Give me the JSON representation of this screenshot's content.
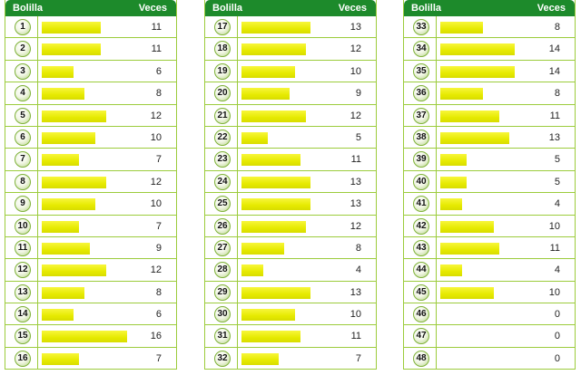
{
  "header": {
    "ball_label": "Bolilla",
    "count_label": "Veces"
  },
  "max_value": 16,
  "columns": [
    {
      "rows": [
        {
          "ball": "1",
          "count": 11
        },
        {
          "ball": "2",
          "count": 11
        },
        {
          "ball": "3",
          "count": 6
        },
        {
          "ball": "4",
          "count": 8
        },
        {
          "ball": "5",
          "count": 12
        },
        {
          "ball": "6",
          "count": 10
        },
        {
          "ball": "7",
          "count": 7
        },
        {
          "ball": "8",
          "count": 12
        },
        {
          "ball": "9",
          "count": 10
        },
        {
          "ball": "10",
          "count": 7
        },
        {
          "ball": "11",
          "count": 9
        },
        {
          "ball": "12",
          "count": 12
        },
        {
          "ball": "13",
          "count": 8
        },
        {
          "ball": "14",
          "count": 6
        },
        {
          "ball": "15",
          "count": 16
        },
        {
          "ball": "16",
          "count": 7
        }
      ]
    },
    {
      "rows": [
        {
          "ball": "17",
          "count": 13
        },
        {
          "ball": "18",
          "count": 12
        },
        {
          "ball": "19",
          "count": 10
        },
        {
          "ball": "20",
          "count": 9
        },
        {
          "ball": "21",
          "count": 12
        },
        {
          "ball": "22",
          "count": 5
        },
        {
          "ball": "23",
          "count": 11
        },
        {
          "ball": "24",
          "count": 13
        },
        {
          "ball": "25",
          "count": 13
        },
        {
          "ball": "26",
          "count": 12
        },
        {
          "ball": "27",
          "count": 8
        },
        {
          "ball": "28",
          "count": 4
        },
        {
          "ball": "29",
          "count": 13
        },
        {
          "ball": "30",
          "count": 10
        },
        {
          "ball": "31",
          "count": 11
        },
        {
          "ball": "32",
          "count": 7
        }
      ]
    },
    {
      "rows": [
        {
          "ball": "33",
          "count": 8
        },
        {
          "ball": "34",
          "count": 14
        },
        {
          "ball": "35",
          "count": 14
        },
        {
          "ball": "36",
          "count": 8
        },
        {
          "ball": "37",
          "count": 11
        },
        {
          "ball": "38",
          "count": 13
        },
        {
          "ball": "39",
          "count": 5
        },
        {
          "ball": "40",
          "count": 5
        },
        {
          "ball": "41",
          "count": 4
        },
        {
          "ball": "42",
          "count": 10
        },
        {
          "ball": "43",
          "count": 11
        },
        {
          "ball": "44",
          "count": 4
        },
        {
          "ball": "45",
          "count": 10
        },
        {
          "ball": "46",
          "count": 0
        },
        {
          "ball": "47",
          "count": 0
        },
        {
          "ball": "48",
          "count": 0
        }
      ]
    }
  ],
  "colors": {
    "header_bg": "#1d8a2b",
    "border": "#9ccc3c",
    "bar": "#e6ea00"
  }
}
